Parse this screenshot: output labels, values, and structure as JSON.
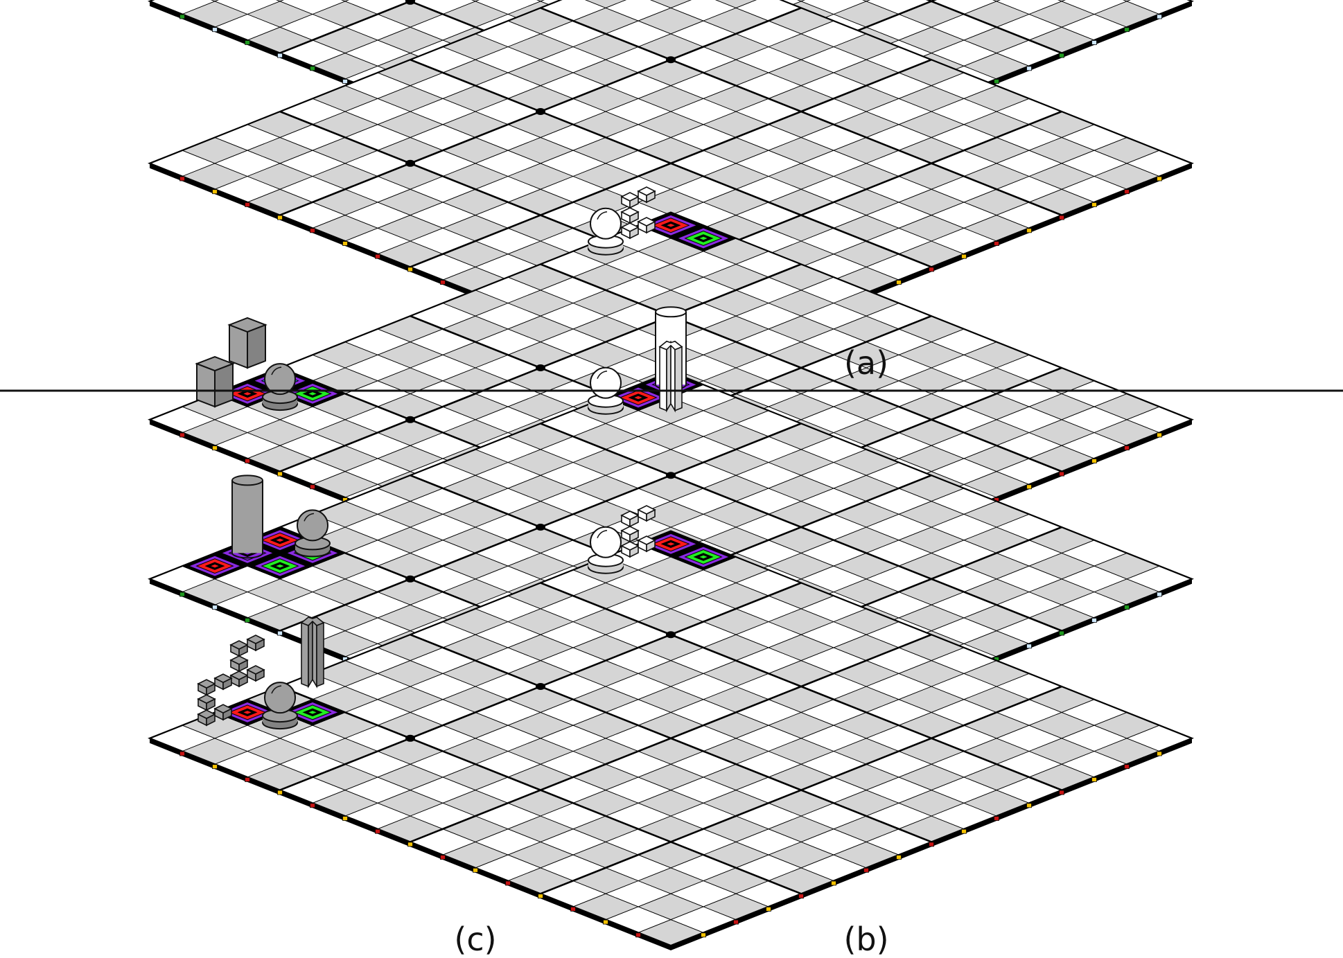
{
  "panels": {
    "a": {
      "caption": "(a)"
    },
    "b": {
      "caption": "(b)"
    },
    "c": {
      "caption": "(c)"
    }
  },
  "colors": {
    "dark_square": "#d5d5d5",
    "light_square": "#ffffff",
    "outline": "#000000",
    "marker_yellow": "#f6c200",
    "marker_blue": "#cfe8ff",
    "marker_green": "#1f9a1f",
    "marker_red": "#c81414",
    "highlight_red": "#ff1a1a",
    "highlight_green": "#22ee22",
    "highlight_cyan": "#22ccff",
    "highlight_purple": "#8a2be2",
    "piece_white": "#ffffff",
    "piece_gray": "#a0a0a0"
  },
  "boards": [
    {
      "name": "board-a-upper",
      "panel": "a",
      "markers": [
        "marker_blue",
        "marker_green"
      ],
      "highlights": [
        {
          "file": 14,
          "rank": 15,
          "color": "highlight_red"
        },
        {
          "file": 15,
          "rank": 14,
          "color": "highlight_red"
        },
        {
          "file": 15,
          "rank": 15,
          "color": "highlight_purple"
        }
      ],
      "pieces": [
        {
          "type": "sphere",
          "file": 13,
          "rank": 15,
          "color": "piece_white"
        },
        {
          "type": "cylinder",
          "file": 15,
          "rank": 15,
          "color": "piece_white"
        }
      ]
    },
    {
      "name": "board-a-lower",
      "panel": "a",
      "markers": [
        "marker_yellow",
        "marker_red"
      ],
      "highlights": [
        {
          "file": 15,
          "rank": 14,
          "color": "highlight_green"
        }
      ],
      "pieces": [
        {
          "type": "cube-corner",
          "file": 13,
          "rank": 15,
          "color": "piece_white"
        },
        {
          "type": "pyramid",
          "file": 14,
          "rank": 15,
          "color": "piece_white"
        },
        {
          "type": "box",
          "file": 15,
          "rank": 15,
          "color": "piece_white"
        }
      ]
    },
    {
      "name": "board-bc-top",
      "panel": "bc",
      "markers": [
        "marker_yellow",
        "marker_red"
      ],
      "highlights": [
        {
          "file": 2,
          "rank": 15,
          "color": "highlight_red"
        },
        {
          "file": 3,
          "rank": 15,
          "color": "highlight_cyan"
        },
        {
          "file": 3,
          "rank": 14,
          "color": "highlight_green"
        },
        {
          "file": 15,
          "rank": 15,
          "color": "highlight_red"
        },
        {
          "file": 15,
          "rank": 14,
          "color": "highlight_green"
        }
      ],
      "pieces": [
        {
          "type": "box",
          "file": 1,
          "rank": 15,
          "color": "piece_gray"
        },
        {
          "type": "box",
          "file": 3,
          "rank": 16,
          "color": "piece_gray"
        },
        {
          "type": "sphere",
          "file": 2,
          "rank": 14,
          "color": "piece_gray"
        },
        {
          "type": "sphere",
          "file": 13,
          "rank": 15,
          "color": "piece_white"
        },
        {
          "type": "stairs",
          "file": 14,
          "rank": 15,
          "color": "piece_white"
        }
      ]
    },
    {
      "name": "board-bc-middle",
      "panel": "bc",
      "markers": [
        "marker_blue",
        "marker_green"
      ],
      "highlights": [
        {
          "file": 1,
          "rank": 15,
          "color": "highlight_red"
        },
        {
          "file": 2,
          "rank": 14,
          "color": "highlight_green"
        },
        {
          "file": 2,
          "rank": 15,
          "color": "highlight_purple"
        },
        {
          "file": 3,
          "rank": 15,
          "color": "highlight_red"
        },
        {
          "file": 3,
          "rank": 14,
          "color": "highlight_green"
        },
        {
          "file": 14,
          "rank": 15,
          "color": "highlight_red"
        },
        {
          "file": 15,
          "rank": 15,
          "color": "highlight_purple"
        }
      ],
      "pieces": [
        {
          "type": "cylinder",
          "file": 2,
          "rank": 15,
          "color": "piece_gray"
        },
        {
          "type": "sphere",
          "file": 3,
          "rank": 14,
          "color": "piece_gray"
        },
        {
          "type": "sphere",
          "file": 13,
          "rank": 15,
          "color": "piece_white"
        },
        {
          "type": "star-column",
          "file": 14,
          "rank": 14,
          "color": "piece_white"
        },
        {
          "type": "cylinder",
          "file": 15,
          "rank": 15,
          "color": "piece_white"
        }
      ]
    },
    {
      "name": "board-bc-bottom",
      "panel": "bc",
      "markers": [
        "marker_yellow",
        "marker_red"
      ],
      "highlights": [
        {
          "file": 2,
          "rank": 15,
          "color": "highlight_red"
        },
        {
          "file": 3,
          "rank": 14,
          "color": "highlight_green"
        },
        {
          "file": 15,
          "rank": 15,
          "color": "highlight_red"
        },
        {
          "file": 15,
          "rank": 14,
          "color": "highlight_green"
        }
      ],
      "pieces": [
        {
          "type": "stairs",
          "file": 1,
          "rank": 15,
          "color": "piece_gray"
        },
        {
          "type": "stairs",
          "file": 3,
          "rank": 16,
          "color": "piece_gray"
        },
        {
          "type": "star-column",
          "file": 4,
          "rank": 15,
          "color": "piece_gray"
        },
        {
          "type": "sphere",
          "file": 2,
          "rank": 14,
          "color": "piece_gray"
        },
        {
          "type": "sphere",
          "file": 13,
          "rank": 15,
          "color": "piece_white"
        },
        {
          "type": "stairs",
          "file": 14,
          "rank": 15,
          "color": "piece_white"
        }
      ]
    }
  ]
}
